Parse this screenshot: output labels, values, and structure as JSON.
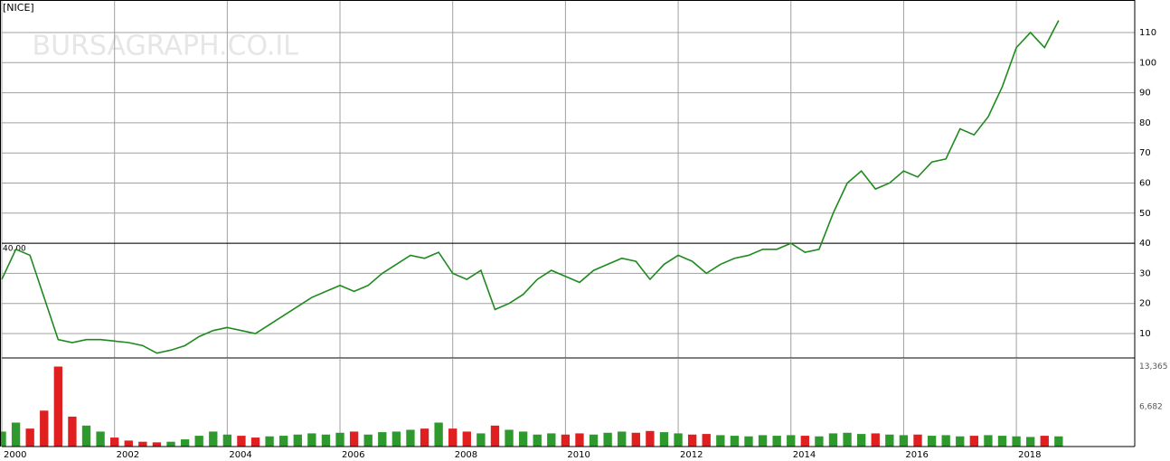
{
  "header": {
    "symbol": "[NICE]",
    "watermark": "BURSAGRAPH.CO.IL"
  },
  "chart_data": [
    {
      "type": "line",
      "name": "price",
      "x": [
        2000,
        2000.25,
        2000.5,
        2000.75,
        2001,
        2001.25,
        2001.5,
        2001.75,
        2002,
        2002.25,
        2002.5,
        2002.75,
        2003,
        2003.25,
        2003.5,
        2003.75,
        2004,
        2004.25,
        2004.5,
        2004.75,
        2005,
        2005.25,
        2005.5,
        2005.75,
        2006,
        2006.25,
        2006.5,
        2006.75,
        2007,
        2007.25,
        2007.5,
        2007.75,
        2008,
        2008.25,
        2008.5,
        2008.75,
        2009,
        2009.25,
        2009.5,
        2009.75,
        2010,
        2010.25,
        2010.5,
        2010.75,
        2011,
        2011.25,
        2011.5,
        2011.75,
        2012,
        2012.25,
        2012.5,
        2012.75,
        2013,
        2013.25,
        2013.5,
        2013.75,
        2014,
        2014.25,
        2014.5,
        2014.75,
        2015,
        2015.25,
        2015.5,
        2015.75,
        2016,
        2016.25,
        2016.5,
        2016.75,
        2017,
        2017.25,
        2017.5,
        2017.75,
        2018,
        2018.25,
        2018.5,
        2018.75
      ],
      "values": [
        28,
        38,
        36,
        22,
        8,
        7,
        8,
        8,
        7.5,
        7,
        6,
        3.5,
        4.5,
        6,
        9,
        11,
        12,
        11,
        10,
        13,
        16,
        19,
        22,
        24,
        26,
        24,
        26,
        30,
        33,
        36,
        35,
        37,
        30,
        28,
        31,
        18,
        20,
        23,
        28,
        31,
        29,
        27,
        31,
        33,
        35,
        34,
        28,
        33,
        36,
        34,
        30,
        33,
        35,
        36,
        38,
        38,
        40,
        37,
        38,
        50,
        60,
        64,
        58,
        60,
        64,
        62,
        67,
        68,
        78,
        76,
        82,
        92,
        105,
        110,
        105,
        114
      ],
      "color": "#1e8a1e",
      "xlim": [
        2000,
        2020.1
      ],
      "ylim": [
        1.9,
        120.8
      ],
      "yticks": [
        10,
        20,
        30,
        40,
        50,
        60,
        70,
        80,
        90,
        100,
        110
      ],
      "reference_line": {
        "value": 40,
        "label": "40.00"
      },
      "grid": true
    },
    {
      "type": "bar",
      "name": "volume",
      "x": [
        2000,
        2000.25,
        2000.5,
        2000.75,
        2001,
        2001.25,
        2001.5,
        2001.75,
        2002,
        2002.25,
        2002.5,
        2002.75,
        2003,
        2003.25,
        2003.5,
        2003.75,
        2004,
        2004.25,
        2004.5,
        2004.75,
        2005,
        2005.25,
        2005.5,
        2005.75,
        2006,
        2006.25,
        2006.5,
        2006.75,
        2007,
        2007.25,
        2007.5,
        2007.75,
        2008,
        2008.25,
        2008.5,
        2008.75,
        2009,
        2009.25,
        2009.5,
        2009.75,
        2010,
        2010.25,
        2010.5,
        2010.75,
        2011,
        2011.25,
        2011.5,
        2011.75,
        2012,
        2012.25,
        2012.5,
        2012.75,
        2013,
        2013.25,
        2013.5,
        2013.75,
        2014,
        2014.25,
        2014.5,
        2014.75,
        2015,
        2015.25,
        2015.5,
        2015.75,
        2016,
        2016.25,
        2016.5,
        2016.75,
        2017,
        2017.25,
        2017.5,
        2017.75,
        2018,
        2018.25,
        2018.5,
        2018.75
      ],
      "values": [
        2500,
        4000,
        3000,
        6000,
        13365,
        5000,
        3500,
        2500,
        1500,
        1000,
        800,
        700,
        800,
        1200,
        1800,
        2500,
        2000,
        1800,
        1500,
        1700,
        1800,
        2000,
        2200,
        2000,
        2300,
        2500,
        2000,
        2400,
        2500,
        2800,
        3000,
        4000,
        3000,
        2500,
        2200,
        3500,
        2800,
        2500,
        2000,
        2200,
        2000,
        2200,
        2000,
        2300,
        2500,
        2300,
        2600,
        2400,
        2200,
        2000,
        2100,
        1900,
        1800,
        1700,
        1900,
        1800,
        1900,
        1800,
        1700,
        2200,
        2300,
        2100,
        2200,
        2000,
        1900,
        2000,
        1800,
        1900,
        1700,
        1800,
        1900,
        1800,
        1700,
        1600,
        1800,
        1700
      ],
      "color": "#2e9a2e",
      "xlim": [
        2000,
        2020.1
      ],
      "ylim": [
        0,
        14800
      ],
      "yticks": [
        {
          "value": 13365,
          "label": "13,365"
        },
        {
          "value": 6682,
          "label": "6,682"
        }
      ],
      "xticks": [
        2000,
        2002,
        2004,
        2006,
        2008,
        2010,
        2012,
        2014,
        2016,
        2018
      ]
    }
  ]
}
